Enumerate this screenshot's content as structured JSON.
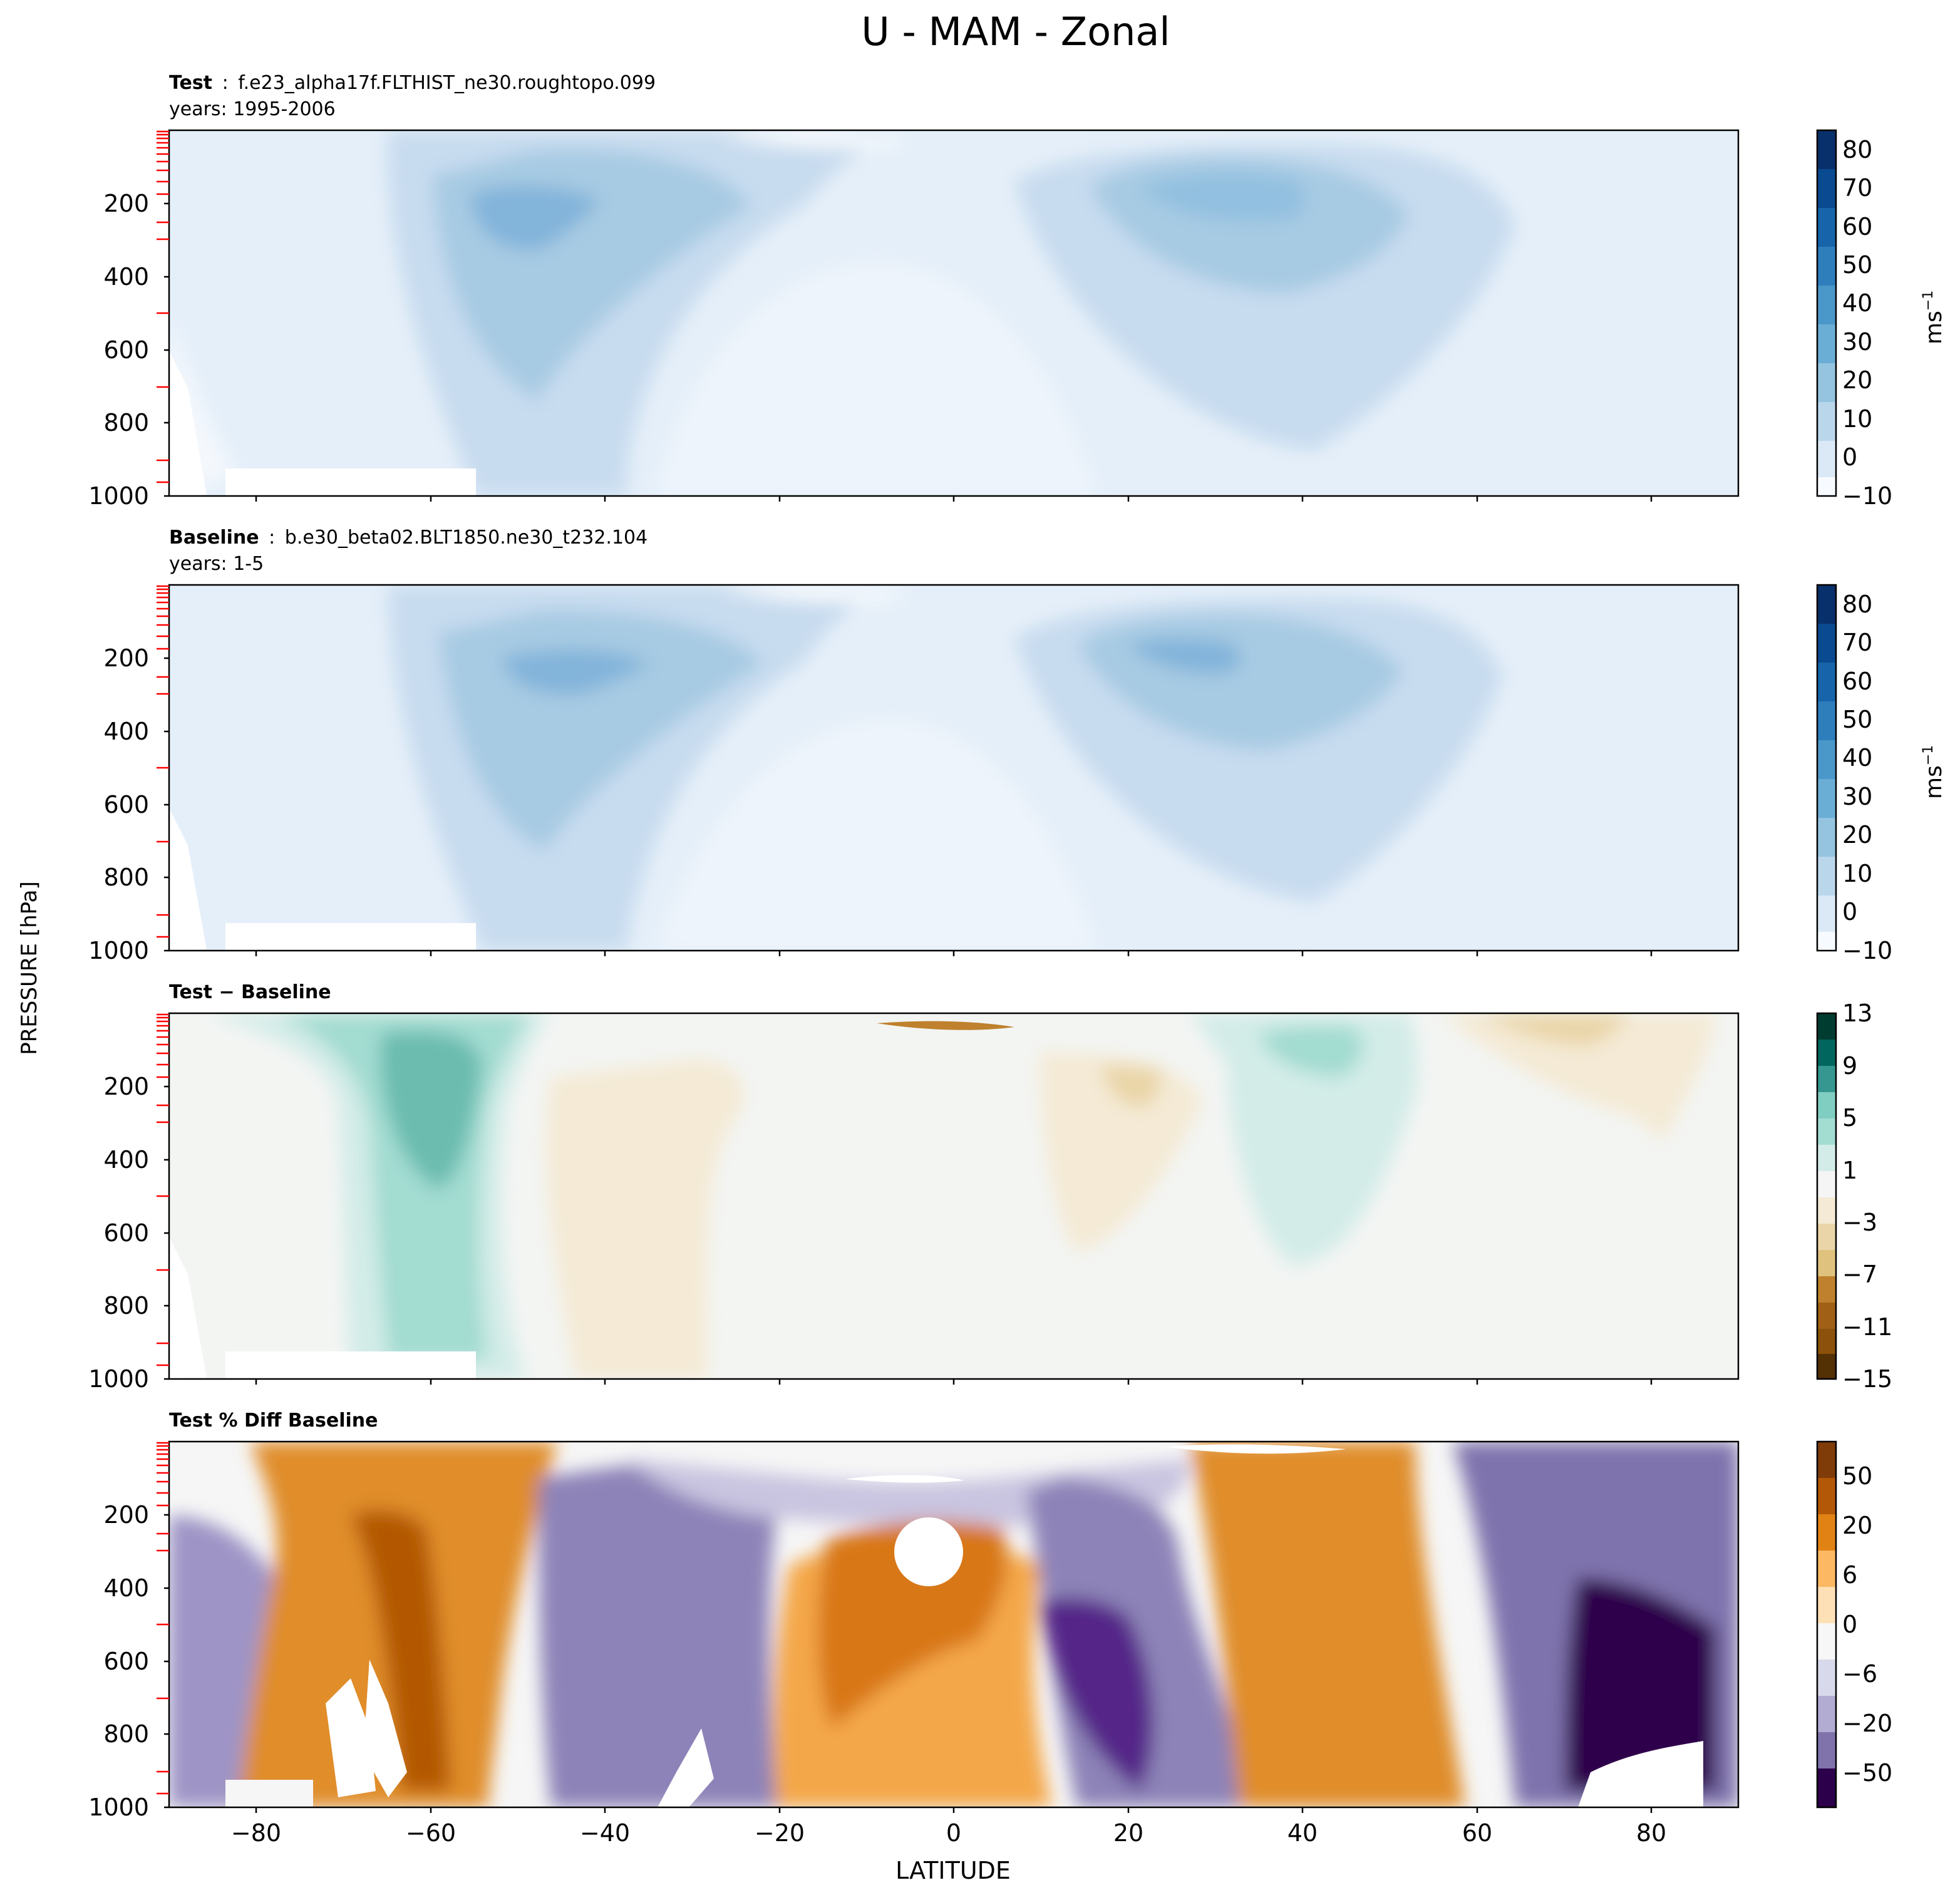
{
  "figure": {
    "title": "U - MAM - Zonal",
    "ylabel": "PRESSURE [hPa]",
    "xlabel": "LATITUDE"
  },
  "chart_data": [
    {
      "type": "heatmap",
      "panel": "test",
      "header": {
        "label": "Test",
        "sep": ":",
        "case": "f.e23_alpha17f.FLTHIST_ne30.roughtopo.099",
        "years": "years: 1995-2006"
      },
      "xlim": [
        -90,
        90
      ],
      "ylim": [
        1000,
        0
      ],
      "xticks": [
        -80,
        -60,
        -40,
        -20,
        0,
        20,
        40,
        60,
        80
      ],
      "yticks": [
        200,
        400,
        600,
        800,
        1000
      ],
      "colorbar": {
        "ticks": [
          "80",
          "70",
          "60",
          "50",
          "40",
          "30",
          "20",
          "10",
          "0",
          "−10"
        ],
        "levels": [
          -10,
          85
        ],
        "unit": "ms",
        "unit_sup": "−1",
        "cmap": "Blues"
      },
      "features": [
        {
          "desc": "southern hemisphere jet core",
          "lat": -50,
          "p": 230,
          "u": 32
        },
        {
          "desc": "northern hemisphere jet core",
          "lat": 28,
          "p": 200,
          "u": 28
        },
        {
          "desc": "tropical weak winds",
          "lat": 0,
          "p": 700,
          "u": 0
        }
      ]
    },
    {
      "type": "heatmap",
      "panel": "baseline",
      "header": {
        "label": "Baseline",
        "sep": ":",
        "case": "b.e30_beta02.BLT1850.ne30_t232.104",
        "years": "years: 1-5"
      },
      "xlim": [
        -90,
        90
      ],
      "ylim": [
        1000,
        0
      ],
      "xticks": [
        -80,
        -60,
        -40,
        -20,
        0,
        20,
        40,
        60,
        80
      ],
      "yticks": [
        200,
        400,
        600,
        800,
        1000
      ],
      "colorbar": {
        "ticks": [
          "80",
          "70",
          "60",
          "50",
          "40",
          "30",
          "20",
          "10",
          "0",
          "−10"
        ],
        "levels": [
          -10,
          85
        ],
        "unit": "ms",
        "unit_sup": "−1",
        "cmap": "Blues"
      },
      "features": [
        {
          "desc": "southern hemisphere jet core",
          "lat": -45,
          "p": 230,
          "u": 30
        },
        {
          "desc": "northern hemisphere jet core",
          "lat": 27,
          "p": 200,
          "u": 32
        }
      ]
    },
    {
      "type": "heatmap",
      "panel": "diff",
      "header": {
        "label": "Test − Baseline"
      },
      "xlim": [
        -90,
        90
      ],
      "ylim": [
        1000,
        0
      ],
      "xticks": [
        -80,
        -60,
        -40,
        -20,
        0,
        20,
        40,
        60,
        80
      ],
      "yticks": [
        200,
        400,
        600,
        800,
        1000
      ],
      "colorbar": {
        "ticks": [
          "13",
          "9",
          "5",
          "1",
          "−3",
          "−7",
          "−11",
          "−15"
        ],
        "levels": [
          -15,
          13
        ],
        "cmap": "BrBG"
      },
      "features": [
        {
          "desc": "positive difference",
          "lat": -60,
          "p": 250,
          "du": 5
        },
        {
          "desc": "negative difference",
          "lat": 18,
          "p": 200,
          "du": -4
        },
        {
          "desc": "positive difference",
          "lat": 40,
          "p": 150,
          "du": 4
        }
      ]
    },
    {
      "type": "heatmap",
      "panel": "pctdiff",
      "header": {
        "label": "Test % Diff Baseline"
      },
      "xlim": [
        -90,
        90
      ],
      "ylim": [
        1000,
        0
      ],
      "xticks": [
        -80,
        -60,
        -40,
        -20,
        0,
        20,
        40,
        60,
        80
      ],
      "yticks": [
        200,
        400,
        600,
        800,
        1000
      ],
      "colorbar": {
        "ticks": [
          "50",
          "20",
          "6",
          "0",
          "−6",
          "−20",
          "−50"
        ],
        "cmap": "PuOr"
      }
    }
  ]
}
